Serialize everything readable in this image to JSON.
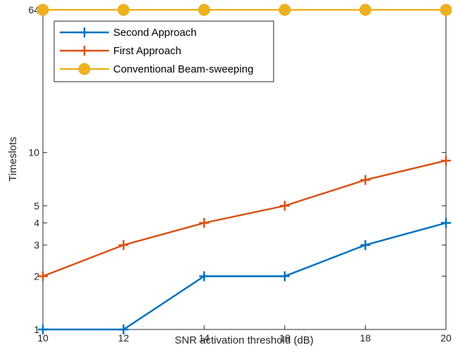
{
  "chart_data": {
    "type": "line",
    "title": "",
    "xlabel": "SNR activation threshold (dB)",
    "ylabel": "Timeslots",
    "x": [
      10,
      12,
      14,
      16,
      18,
      20
    ],
    "xlim": [
      10,
      20
    ],
    "ylim": [
      1,
      64
    ],
    "yscale": "log",
    "xticks": [
      10,
      12,
      14,
      16,
      18,
      20
    ],
    "yticks": [
      1,
      2,
      3,
      4,
      5,
      10,
      64
    ],
    "grid": false,
    "legend_position": "top-left",
    "series": [
      {
        "name": "Second Approach",
        "values": [
          1,
          1,
          2,
          2,
          3,
          4
        ],
        "color": "#0072bd",
        "marker": "plus"
      },
      {
        "name": "First Approach",
        "values": [
          2,
          3,
          4,
          5,
          7,
          9
        ],
        "color": "#d95319",
        "marker": "plus"
      },
      {
        "name": "Conventional Beam-sweeping",
        "values": [
          64,
          64,
          64,
          64,
          64,
          64
        ],
        "color": "#edb120",
        "marker": "circle"
      }
    ]
  }
}
